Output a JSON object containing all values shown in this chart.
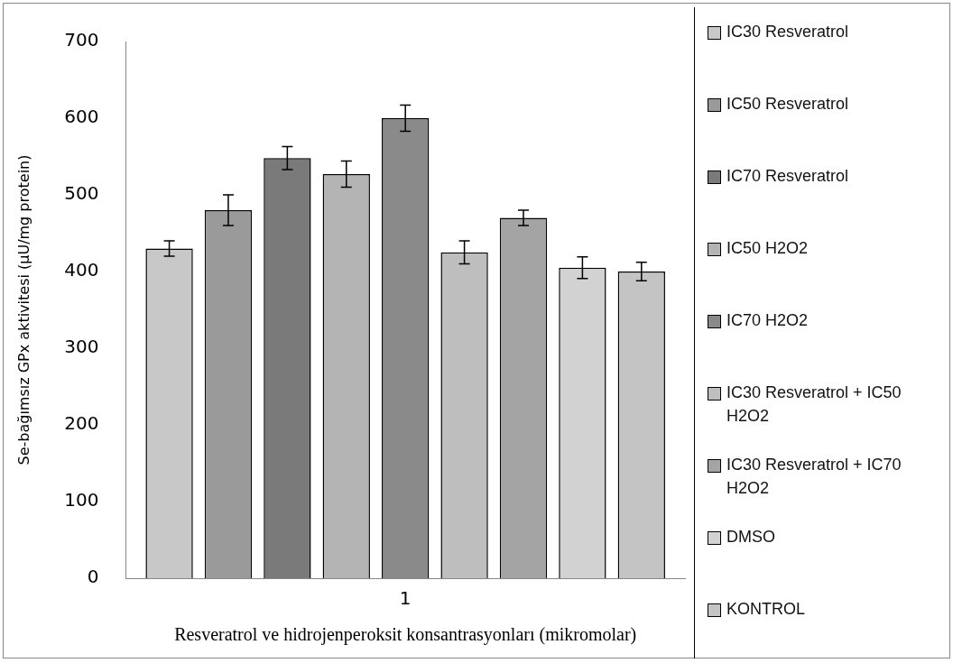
{
  "chart_data": {
    "type": "bar",
    "xlabel": "Resveratrol ve hidrojenperoksit konsantrasyonları (mikromolar)",
    "ylabel": "Se-bağımsız GPx aktivitesi (µU/mg protein)",
    "categories": [
      "1"
    ],
    "ylim": [
      0,
      700
    ],
    "yticks": [
      0,
      100,
      200,
      300,
      400,
      500,
      600,
      700
    ],
    "grid": false,
    "legend": "right",
    "series": [
      {
        "name": "IC30 Resveratrol",
        "color": "#c8c8c8",
        "values": [
          430
        ],
        "errors": [
          10
        ]
      },
      {
        "name": "IC50 Resveratrol",
        "color": "#9a9a9a",
        "values": [
          480
        ],
        "errors": [
          20
        ]
      },
      {
        "name": "IC70 Resveratrol",
        "color": "#7a7a7a",
        "values": [
          548
        ],
        "errors": [
          15
        ]
      },
      {
        "name": "IC50 H2O2",
        "color": "#b4b4b4",
        "values": [
          527
        ],
        "errors": [
          17
        ]
      },
      {
        "name": "IC70 H2O2",
        "color": "#8a8a8a",
        "values": [
          600
        ],
        "errors": [
          17
        ]
      },
      {
        "name": "IC30 Resveratrol + IC50 H2O2",
        "color": "#bebebe",
        "values": [
          425
        ],
        "errors": [
          15
        ]
      },
      {
        "name": "IC30 Resveratrol + IC70 H2O2",
        "color": "#a4a4a4",
        "values": [
          470
        ],
        "errors": [
          10
        ]
      },
      {
        "name": "DMSO",
        "color": "#d2d2d2",
        "values": [
          405
        ],
        "errors": [
          14
        ]
      },
      {
        "name": "KONTROL",
        "color": "#c4c4c4",
        "values": [
          400
        ],
        "errors": [
          12
        ]
      }
    ]
  }
}
